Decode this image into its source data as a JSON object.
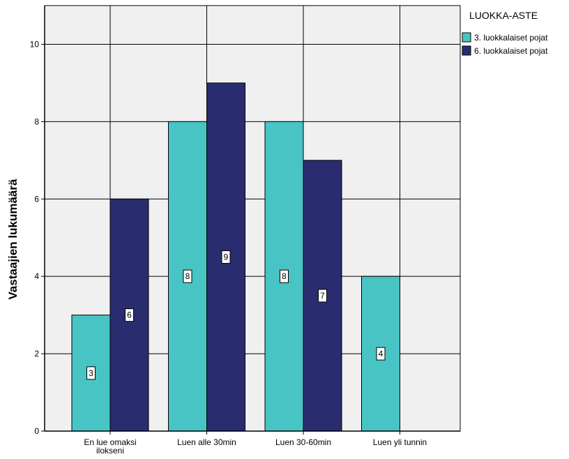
{
  "chart_data": {
    "type": "bar",
    "title": "",
    "xlabel": "",
    "ylabel": "Vastaajien lukumäärä",
    "ylim": [
      0,
      11
    ],
    "yticks": [
      0,
      2,
      4,
      6,
      8,
      10
    ],
    "grid": true,
    "categories": [
      [
        "En lue omaksi",
        "ilokseni"
      ],
      [
        "Luen alle 30min"
      ],
      [
        "Luen 30-60min"
      ],
      [
        "Luen yli tunnin"
      ]
    ],
    "legend": {
      "title": "LUOKKA-ASTE",
      "placement": "top-right"
    },
    "series": [
      {
        "name": "3. luokkalaiset pojat",
        "color": "#48c4c4",
        "values": [
          3,
          8,
          8,
          4
        ]
      },
      {
        "name": "6. luokkalaiset pojat",
        "color": "#2a2c70",
        "values": [
          6,
          9,
          7,
          null
        ]
      }
    ],
    "background_color": "#f0f0f0"
  }
}
